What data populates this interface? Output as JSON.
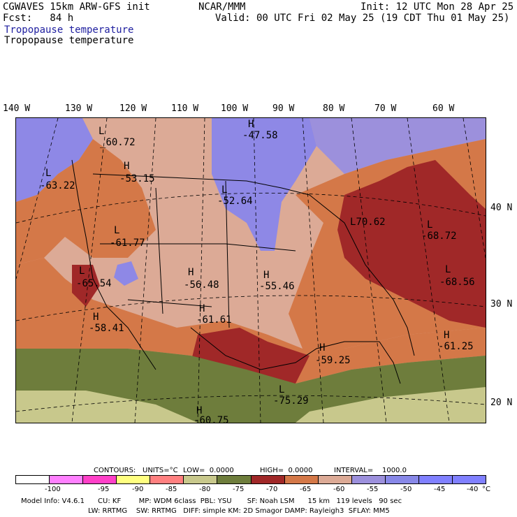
{
  "header": {
    "model": "CGWAVES 15km ARW-GFS init",
    "org": "NCAR/MMM",
    "init": "Init: 12 UTC Mon 28 Apr 25",
    "fcst": "Fcst:   84 h",
    "valid": "Valid: 00 UTC Fri 02 May 25 (19 CDT Thu 01 May 25)",
    "field_title_blue": "Tropopause temperature",
    "field_title_black": "Tropopause temperature"
  },
  "longitudes": [
    "140 W",
    "130 W",
    "120 W",
    "110 W",
    "100 W",
    "90 W",
    "80 W",
    "70 W",
    "60 W"
  ],
  "latitudes": [
    "40 N",
    "30 N",
    "20 N"
  ],
  "markers": [
    {
      "type": "L",
      "value": "60.72"
    },
    {
      "type": "H",
      "value": "47.58"
    },
    {
      "type": "L",
      "value": "63.22"
    },
    {
      "type": "H",
      "value": "53.15"
    },
    {
      "type": "L",
      "value": "52.64"
    },
    {
      "type": "L",
      "value": "70.62"
    },
    {
      "type": "L",
      "value": "68.72"
    },
    {
      "type": "L",
      "value": "61.77"
    },
    {
      "type": "L",
      "value": "65.54"
    },
    {
      "type": "H",
      "value": "56.48"
    },
    {
      "type": "H",
      "value": "55.46"
    },
    {
      "type": "L",
      "value": "68.56"
    },
    {
      "type": "H",
      "value": "58.41"
    },
    {
      "type": "H",
      "value": "61.61"
    },
    {
      "type": "H",
      "value": "61.25"
    },
    {
      "type": "H",
      "value": "59.25"
    },
    {
      "type": "L",
      "value": "75.29"
    },
    {
      "type": "H",
      "value": "60.75"
    }
  ],
  "contour_info": {
    "contours": "CONTOURS:",
    "units": "UNITS=°C",
    "low": "LOW=  0.0000",
    "high": "HIGH=  0.0000",
    "interval": "INTERVAL=    1000.0"
  },
  "legend": {
    "colors": [
      "#ffffff",
      "#ff80ff",
      "#ff40c8",
      "#ffff80",
      "#ff8080",
      "#c8c88c",
      "#6e7d3c",
      "#a02828",
      "#d47848",
      "#dcaa96",
      "#9c90dc",
      "#8888e8",
      "#8080ff",
      "#8080ff"
    ],
    "ticks": [
      "-100",
      "-95",
      "-90",
      "-85",
      "-80",
      "-75",
      "-70",
      "-65",
      "-60",
      "-55",
      "-50",
      "-45",
      "-40",
      "°C"
    ]
  },
  "footer": {
    "line1": "Model Info: V4.6.1      CU: KF        MP: WDM 6class  PBL: YSU       SF: Noah LSM      15 km   119 levels   90 sec",
    "line2": "LW: RRTMG    SW: RRTMG   DIFF: simple KM: 2D Smagor DAMP: Rayleigh3  SFLAY: MM5"
  },
  "colors": {
    "cold_blue": "#8e88e6",
    "purple": "#9c90dc",
    "light_salmon": "#dcaa96",
    "orange": "#d47848",
    "dark_red": "#a02828",
    "olive": "#6e7d3c",
    "tan": "#c8c88c"
  }
}
